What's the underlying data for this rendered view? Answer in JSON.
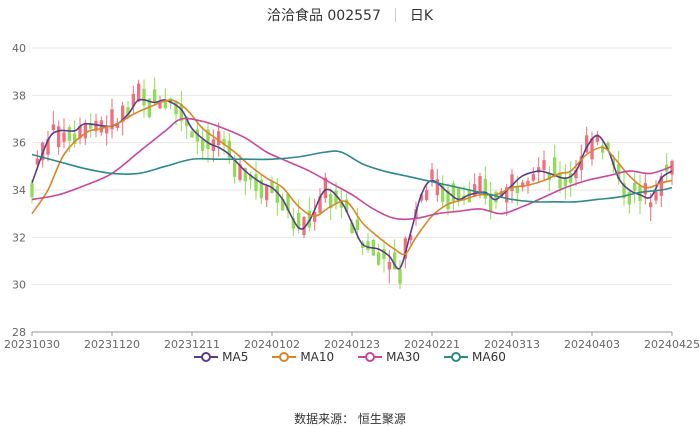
{
  "header": {
    "stock_name": "洽洽食品 002557",
    "period": "日K"
  },
  "source": "数据来源：  恒生聚源",
  "colors": {
    "up": "#ef6f7a",
    "down": "#90dc55",
    "ma5": "#5a3d8a",
    "ma10": "#d9862a",
    "ma30": "#c9479b",
    "ma60": "#2c8a8a",
    "grid": "#e6e6e6",
    "axis_text": "#666666"
  },
  "chart_data": {
    "type": "candlestick",
    "title": "洽洽食品 002557 日K",
    "ylim": [
      28,
      40
    ],
    "y_ticks": [
      28,
      30,
      32,
      34,
      36,
      38,
      40
    ],
    "x_tick_labels": [
      "20231030",
      "20231120",
      "20231211",
      "20240102",
      "20240123",
      "20240221",
      "20240313",
      "20240403",
      "20240425"
    ],
    "x_tick_index": [
      0,
      15,
      30,
      45,
      60,
      75,
      90,
      105,
      120
    ],
    "num_days": 121,
    "grid": true,
    "legend_position": "bottom",
    "series": [
      {
        "name": "MA5",
        "points": [
          [
            0,
            34.3
          ],
          [
            3,
            36.1
          ],
          [
            5,
            36.5
          ],
          [
            8,
            36.5
          ],
          [
            10,
            36.8
          ],
          [
            15,
            36.7
          ],
          [
            18,
            37.2
          ],
          [
            20,
            37.8
          ],
          [
            23,
            37.7
          ],
          [
            25,
            37.8
          ],
          [
            28,
            37.4
          ],
          [
            30,
            36.6
          ],
          [
            33,
            36.0
          ],
          [
            35,
            35.8
          ],
          [
            37,
            35.5
          ],
          [
            40,
            34.8
          ],
          [
            43,
            34.3
          ],
          [
            45,
            34.1
          ],
          [
            47,
            33.6
          ],
          [
            50,
            32.4
          ],
          [
            52,
            32.7
          ],
          [
            55,
            34.0
          ],
          [
            58,
            33.5
          ],
          [
            60,
            32.6
          ],
          [
            62,
            31.7
          ],
          [
            65,
            31.5
          ],
          [
            67,
            31.2
          ],
          [
            69,
            30.7
          ],
          [
            71,
            32.2
          ],
          [
            73,
            33.8
          ],
          [
            75,
            34.4
          ],
          [
            78,
            33.9
          ],
          [
            80,
            33.6
          ],
          [
            82,
            33.8
          ],
          [
            85,
            33.9
          ],
          [
            87,
            33.6
          ],
          [
            90,
            34.2
          ],
          [
            92,
            34.6
          ],
          [
            95,
            34.8
          ],
          [
            97,
            34.7
          ],
          [
            100,
            34.5
          ],
          [
            102,
            34.8
          ],
          [
            104,
            35.8
          ],
          [
            106,
            36.3
          ],
          [
            108,
            35.7
          ],
          [
            110,
            34.5
          ],
          [
            112,
            34.0
          ],
          [
            114,
            33.8
          ],
          [
            116,
            33.7
          ],
          [
            118,
            34.5
          ],
          [
            120,
            34.8
          ]
        ]
      },
      {
        "name": "MA10",
        "points": [
          [
            0,
            33.0
          ],
          [
            3,
            34.0
          ],
          [
            6,
            35.5
          ],
          [
            10,
            36.4
          ],
          [
            13,
            36.6
          ],
          [
            16,
            36.8
          ],
          [
            19,
            37.2
          ],
          [
            22,
            37.5
          ],
          [
            26,
            37.8
          ],
          [
            29,
            37.4
          ],
          [
            32,
            36.6
          ],
          [
            35,
            36.1
          ],
          [
            38,
            35.6
          ],
          [
            41,
            35.0
          ],
          [
            44,
            34.5
          ],
          [
            47,
            34.1
          ],
          [
            50,
            33.3
          ],
          [
            53,
            32.9
          ],
          [
            56,
            33.3
          ],
          [
            59,
            33.5
          ],
          [
            62,
            32.6
          ],
          [
            65,
            32.0
          ],
          [
            68,
            31.5
          ],
          [
            70,
            31.3
          ],
          [
            72,
            32.0
          ],
          [
            75,
            32.9
          ],
          [
            78,
            33.4
          ],
          [
            81,
            33.6
          ],
          [
            84,
            33.8
          ],
          [
            87,
            33.8
          ],
          [
            90,
            34.1
          ],
          [
            93,
            34.2
          ],
          [
            96,
            34.4
          ],
          [
            99,
            34.7
          ],
          [
            101,
            34.8
          ],
          [
            104,
            35.5
          ],
          [
            107,
            35.8
          ],
          [
            109,
            35.4
          ],
          [
            112,
            34.6
          ],
          [
            115,
            34.1
          ],
          [
            118,
            34.3
          ],
          [
            120,
            34.4
          ]
        ]
      },
      {
        "name": "MA30",
        "points": [
          [
            0,
            33.6
          ],
          [
            5,
            33.8
          ],
          [
            10,
            34.2
          ],
          [
            15,
            34.7
          ],
          [
            20,
            35.6
          ],
          [
            25,
            36.5
          ],
          [
            28,
            37.0
          ],
          [
            32,
            36.9
          ],
          [
            36,
            36.6
          ],
          [
            40,
            36.2
          ],
          [
            44,
            35.6
          ],
          [
            48,
            35.2
          ],
          [
            52,
            34.8
          ],
          [
            56,
            34.3
          ],
          [
            60,
            33.8
          ],
          [
            64,
            33.2
          ],
          [
            68,
            32.8
          ],
          [
            72,
            32.8
          ],
          [
            76,
            33.0
          ],
          [
            80,
            33.1
          ],
          [
            84,
            33.2
          ],
          [
            88,
            33.0
          ],
          [
            92,
            33.3
          ],
          [
            96,
            33.7
          ],
          [
            100,
            34.1
          ],
          [
            104,
            34.4
          ],
          [
            108,
            34.6
          ],
          [
            112,
            34.8
          ],
          [
            116,
            34.7
          ],
          [
            120,
            35.0
          ]
        ]
      },
      {
        "name": "MA60",
        "points": [
          [
            0,
            35.5
          ],
          [
            5,
            35.2
          ],
          [
            10,
            34.9
          ],
          [
            15,
            34.7
          ],
          [
            20,
            34.7
          ],
          [
            25,
            35.0
          ],
          [
            30,
            35.3
          ],
          [
            35,
            35.3
          ],
          [
            40,
            35.3
          ],
          [
            45,
            35.3
          ],
          [
            50,
            35.4
          ],
          [
            55,
            35.6
          ],
          [
            58,
            35.6
          ],
          [
            62,
            35.1
          ],
          [
            66,
            34.8
          ],
          [
            70,
            34.6
          ],
          [
            74,
            34.4
          ],
          [
            78,
            34.2
          ],
          [
            82,
            34.0
          ],
          [
            86,
            33.8
          ],
          [
            90,
            33.6
          ],
          [
            94,
            33.5
          ],
          [
            98,
            33.5
          ],
          [
            102,
            33.5
          ],
          [
            106,
            33.6
          ],
          [
            110,
            33.7
          ],
          [
            114,
            33.9
          ],
          [
            118,
            34.0
          ],
          [
            120,
            34.1
          ]
        ]
      }
    ]
  },
  "legend": [
    {
      "name": "MA5",
      "color_key": "ma5"
    },
    {
      "name": "MA10",
      "color_key": "ma10"
    },
    {
      "name": "MA30",
      "color_key": "ma30"
    },
    {
      "name": "MA60",
      "color_key": "ma60"
    }
  ]
}
